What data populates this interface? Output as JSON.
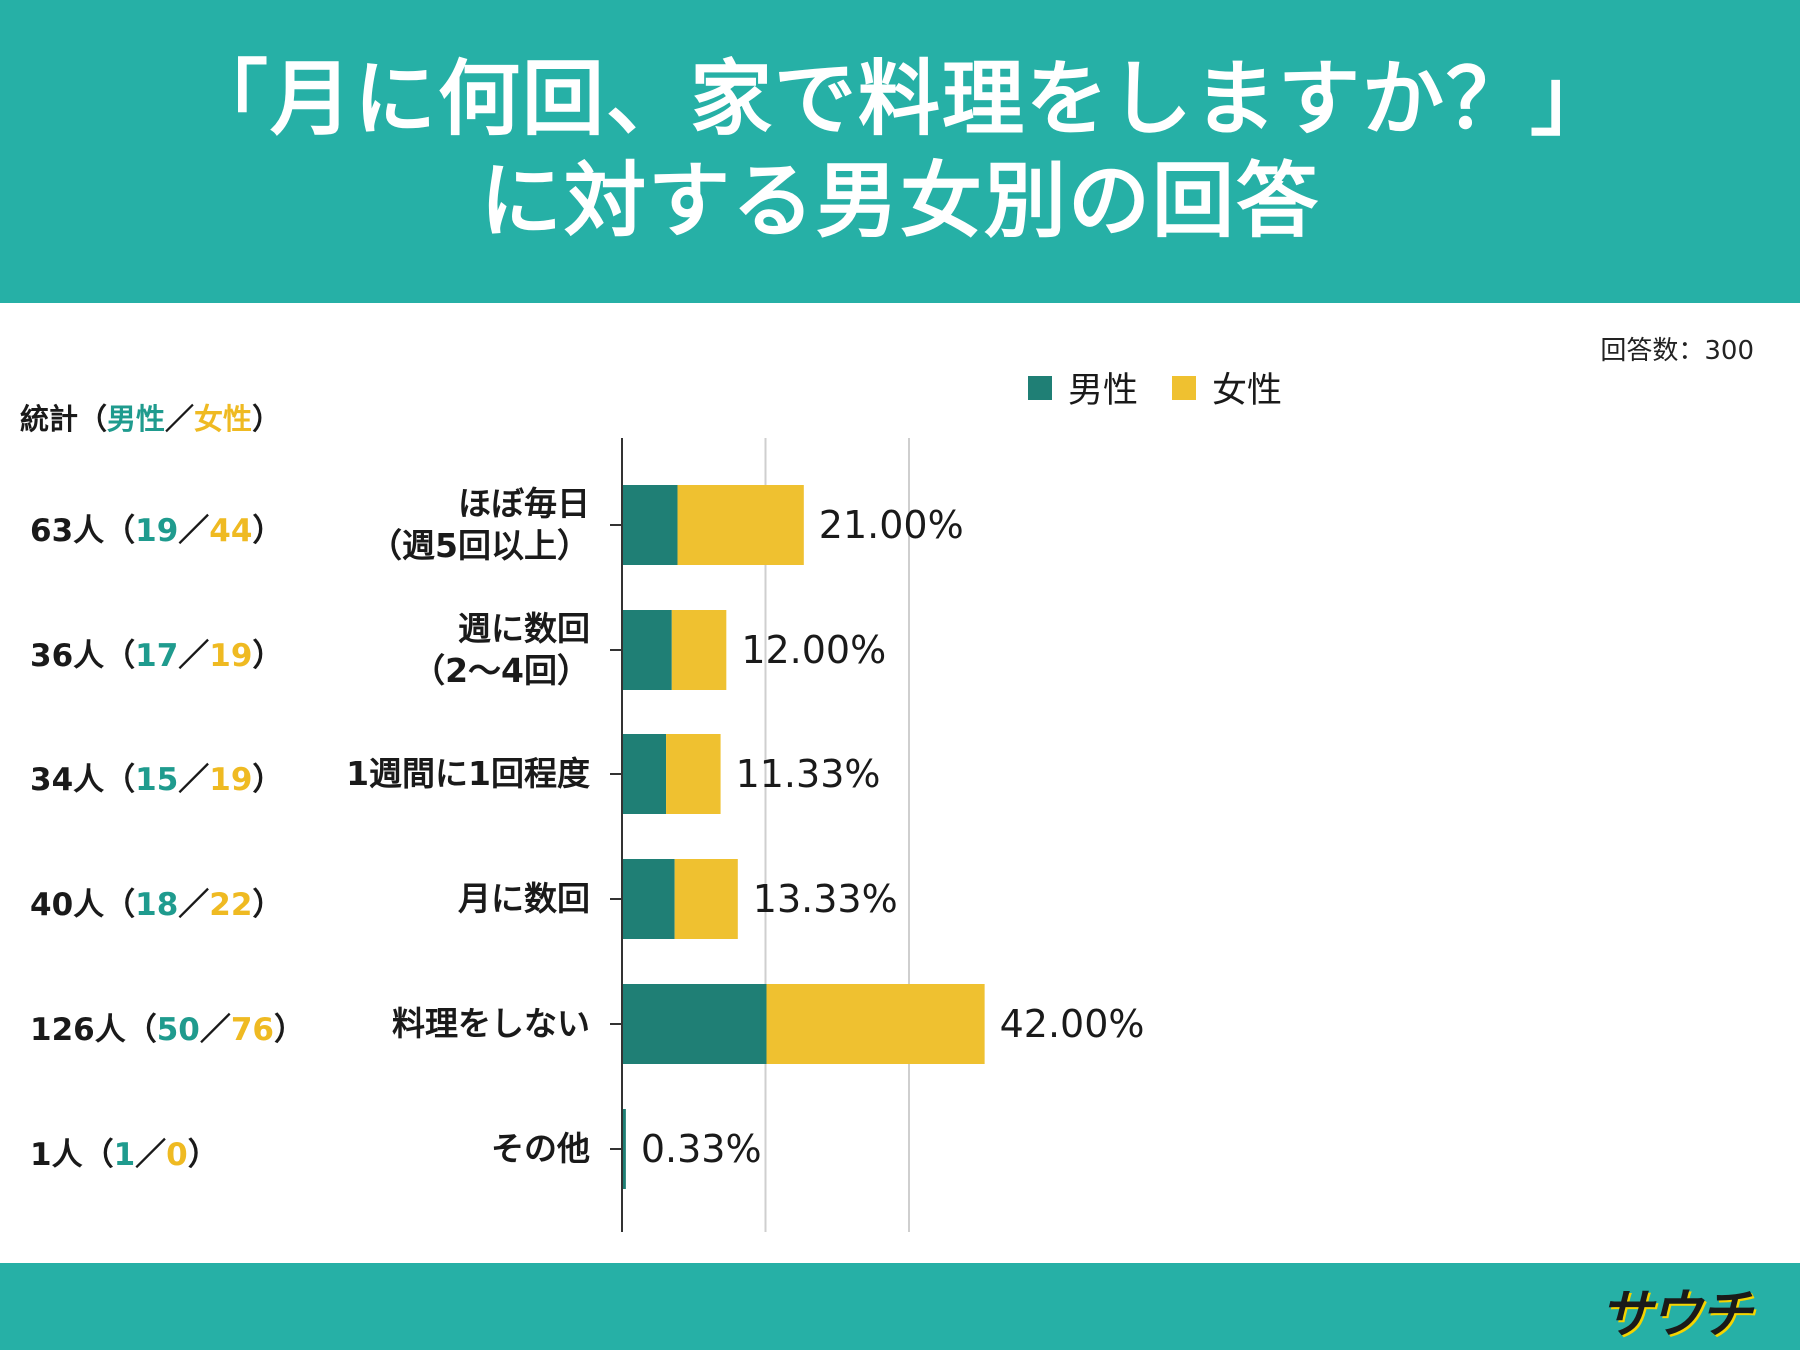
{
  "header": {
    "title_line1": "「月に何回、家で料理をしますか？」",
    "title_line2": "に対する男女別の回答"
  },
  "respondents": "回答数：300",
  "stats_heading": {
    "prefix": "統計（",
    "male": "男性",
    "sep": "／",
    "female": "女性",
    "suffix": "）"
  },
  "legend": {
    "male": "男性",
    "female": "女性"
  },
  "colors": {
    "header": "#26b0a6",
    "male": "#1f7f75",
    "female": "#efc130",
    "male_text": "#1f9b8e",
    "female_text": "#efba22"
  },
  "stats": [
    {
      "total": "63人（",
      "male": "19",
      "sep": "／",
      "female": "44",
      "end": "）"
    },
    {
      "total": "36人（",
      "male": "17",
      "sep": "／",
      "female": "19",
      "end": "）"
    },
    {
      "total": "34人（",
      "male": "15",
      "sep": "／",
      "female": "19",
      "end": "）"
    },
    {
      "total": "40人（",
      "male": "18",
      "sep": "／",
      "female": "22",
      "end": "）"
    },
    {
      "total": "126人（",
      "male": "50",
      "sep": "／",
      "female": "76",
      "end": "）"
    },
    {
      "total": "1人（",
      "male": "1",
      "sep": "／",
      "female": "0",
      "end": "）"
    }
  ],
  "chart_data": {
    "type": "bar",
    "orientation": "horizontal",
    "stacked": true,
    "categories": [
      "ほぼ毎日\n（週5回以上）",
      "週に数回\n（2〜4回）",
      "1週間に1回程度",
      "月に数回",
      "料理をしない",
      "その他"
    ],
    "series": [
      {
        "name": "男性",
        "values": [
          19,
          17,
          15,
          18,
          50,
          1
        ]
      },
      {
        "name": "女性",
        "values": [
          44,
          19,
          19,
          22,
          76,
          0
        ]
      }
    ],
    "data_labels": [
      "21.00%",
      "12.00%",
      "11.33%",
      "13.33%",
      "42.00%",
      "0.33%"
    ],
    "xlim": [
      0,
      150
    ],
    "grid": true,
    "legend_position": "top"
  },
  "logo": "サウチ"
}
